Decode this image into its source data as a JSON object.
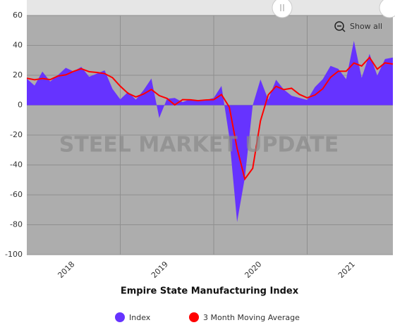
{
  "chart_data": {
    "type": "area_line",
    "title": "Empire State Manufacturing Index",
    "watermark": "STEEL MARKET UPDATE",
    "button": "Show all",
    "x": [
      2018,
      2018.083,
      2018.167,
      2018.25,
      2018.333,
      2018.417,
      2018.5,
      2018.583,
      2018.667,
      2018.75,
      2018.833,
      2018.917,
      2019,
      2019.083,
      2019.167,
      2019.25,
      2019.333,
      2019.417,
      2019.5,
      2019.583,
      2019.667,
      2019.75,
      2019.833,
      2019.917,
      2020,
      2020.083,
      2020.167,
      2020.25,
      2020.333,
      2020.417,
      2020.5,
      2020.583,
      2020.667,
      2020.75,
      2020.833,
      2020.917,
      2021,
      2021.083,
      2021.167,
      2021.25,
      2021.333,
      2021.417,
      2021.5,
      2021.583,
      2021.667,
      2021.75,
      2021.833,
      2021.917
    ],
    "series": [
      {
        "name": "Index",
        "color": "#6633ff",
        "values": [
          17.7,
          13.1,
          22.5,
          15.8,
          20.1,
          25.0,
          22.6,
          25.6,
          19.0,
          21.1,
          23.3,
          10.9,
          3.9,
          8.8,
          3.7,
          10.1,
          17.8,
          -8.6,
          4.3,
          4.8,
          2.0,
          4.0,
          2.9,
          3.5,
          4.8,
          12.9,
          -21.5,
          -78.2,
          -48.5,
          -0.2,
          17.2,
          3.7,
          17.0,
          10.5,
          6.3,
          4.9,
          3.5,
          12.1,
          17.4,
          26.3,
          24.3,
          17.4,
          43.0,
          18.3,
          34.3,
          19.8,
          30.9,
          31.9
        ]
      },
      {
        "name": "3 Month Moving Average",
        "color": "#ff0000",
        "values": [
          18,
          17,
          17.8,
          17.1,
          19.5,
          20.3,
          22.6,
          24.4,
          22.4,
          21.9,
          21.1,
          18.4,
          12.7,
          7.9,
          5.5,
          7.5,
          10.5,
          6.4,
          4.5,
          0.2,
          3.7,
          3.6,
          3.0,
          3.5,
          3.7,
          7.1,
          -1.3,
          -28.9,
          -49.4,
          -42.3,
          -10.5,
          6.9,
          12.6,
          10.4,
          11.3,
          7.2,
          4.9,
          6.8,
          11.0,
          18.6,
          22.7,
          22.7,
          28.2,
          26.2,
          31.9,
          24.1,
          28.3,
          27.5
        ]
      }
    ],
    "xlim": [
      2018,
      2021.917
    ],
    "xticks": [
      {
        "value": 2018.5,
        "label": "2018"
      },
      {
        "value": 2019.5,
        "label": "2019"
      },
      {
        "value": 2020.5,
        "label": "2020"
      },
      {
        "value": 2021.5,
        "label": "2021"
      }
    ],
    "xgrid": [
      2019,
      2020,
      2021
    ],
    "ylim": [
      -100,
      60
    ],
    "yticks": [
      -100,
      -80,
      -60,
      -40,
      -20,
      0,
      20,
      40,
      60
    ],
    "grid": true,
    "legend": "bottom"
  }
}
